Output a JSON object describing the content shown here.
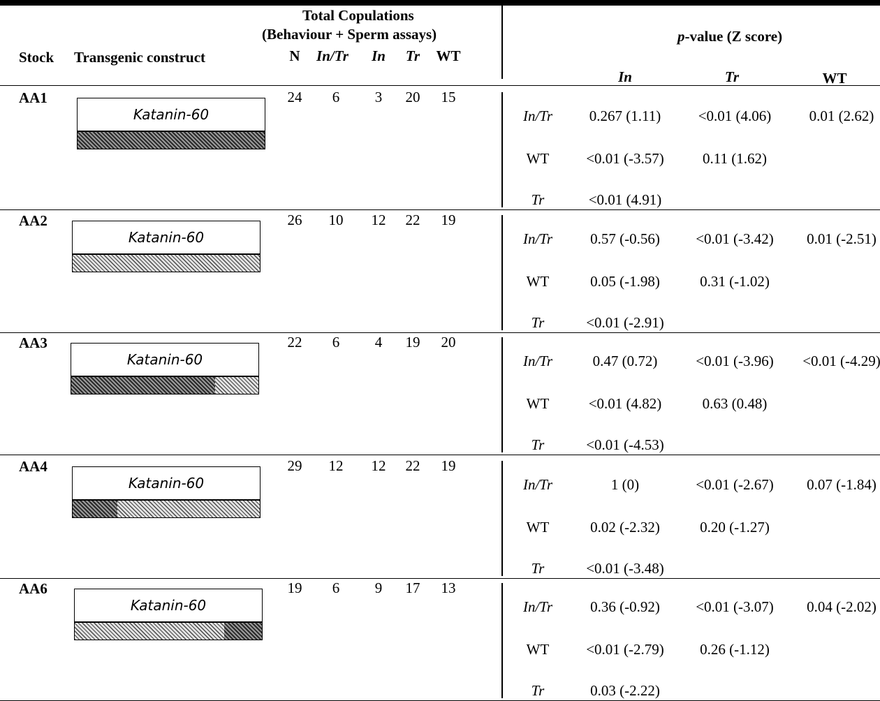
{
  "header": {
    "stock": "Stock",
    "construct": "Transgenic construct",
    "total_line1": "Total Copulations",
    "total_line2": "(Behaviour + Sperm assays)",
    "count_cols": [
      "N",
      "In/Tr",
      "In",
      "Tr",
      "WT"
    ],
    "pvalue_prefix": "p",
    "pvalue_rest": "-value (Z score)",
    "pvalue_cols": [
      "In",
      "Tr",
      "WT"
    ]
  },
  "construct_label": "Katanin-60",
  "colors": {
    "dark_hatch": "#2a2a2a",
    "light_hatch": "#e2e2e2",
    "rule": "#000000"
  },
  "rows": [
    {
      "stock": "AA1",
      "counts": [
        "24",
        "6",
        "3",
        "20",
        "15"
      ],
      "bar_dark_fraction": 1.0,
      "bar_order": "dark-first",
      "comparisons": [
        {
          "label": "In/Tr",
          "In": "0.267 (1.11)",
          "Tr": "<0.01 (4.06)",
          "WT": "0.01 (2.62)"
        },
        {
          "label": "WT",
          "In": "<0.01 (-3.57)",
          "Tr": "0.11 (1.62)",
          "WT": ""
        },
        {
          "label": "Tr",
          "In": "<0.01 (4.91)",
          "Tr": "",
          "WT": ""
        }
      ]
    },
    {
      "stock": "AA2",
      "counts": [
        "26",
        "10",
        "12",
        "22",
        "19"
      ],
      "bar_dark_fraction": 0.0,
      "bar_order": "dark-first",
      "comparisons": [
        {
          "label": "In/Tr",
          "In": "0.57 (-0.56)",
          "Tr": "<0.01 (-3.42)",
          "WT": "0.01 (-2.51)"
        },
        {
          "label": "WT",
          "In": "0.05 (-1.98)",
          "Tr": "0.31 (-1.02)",
          "WT": ""
        },
        {
          "label": "Tr",
          "In": "<0.01 (-2.91)",
          "Tr": "",
          "WT": ""
        }
      ]
    },
    {
      "stock": "AA3",
      "counts": [
        "22",
        "6",
        "4",
        "19",
        "20"
      ],
      "bar_dark_fraction": 0.77,
      "bar_order": "dark-first",
      "comparisons": [
        {
          "label": "In/Tr",
          "In": "0.47 (0.72)",
          "Tr": "<0.01 (-3.96)",
          "WT": "<0.01 (-4.29)"
        },
        {
          "label": "WT",
          "In": "<0.01 (4.82)",
          "Tr": "0.63 (0.48)",
          "WT": ""
        },
        {
          "label": "Tr",
          "In": "<0.01 (-4.53)",
          "Tr": "",
          "WT": ""
        }
      ]
    },
    {
      "stock": "AA4",
      "counts": [
        "29",
        "12",
        "12",
        "22",
        "19"
      ],
      "bar_dark_fraction": 0.24,
      "bar_order": "dark-first",
      "comparisons": [
        {
          "label": "In/Tr",
          "In": "1 (0)",
          "Tr": "<0.01 (-2.67)",
          "WT": "0.07 (-1.84)"
        },
        {
          "label": "WT",
          "In": "0.02 (-2.32)",
          "Tr": "0.20 (-1.27)",
          "WT": ""
        },
        {
          "label": "Tr",
          "In": "<0.01 (-3.48)",
          "Tr": "",
          "WT": ""
        }
      ]
    },
    {
      "stock": "AA6",
      "counts": [
        "19",
        "6",
        "9",
        "17",
        "13"
      ],
      "bar_dark_fraction": 0.2,
      "bar_order": "light-first",
      "comparisons": [
        {
          "label": "In/Tr",
          "In": "0.36 (-0.92)",
          "Tr": "<0.01 (-3.07)",
          "WT": "0.04 (-2.02)"
        },
        {
          "label": "WT",
          "In": "<0.01 (-2.79)",
          "Tr": "0.26 (-1.12)",
          "WT": ""
        },
        {
          "label": "Tr",
          "In": "0.03 (-2.22)",
          "Tr": "",
          "WT": ""
        }
      ]
    }
  ]
}
